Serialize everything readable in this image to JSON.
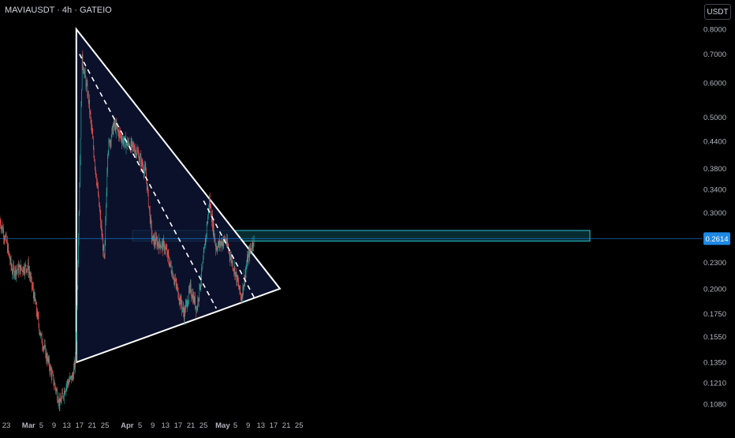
{
  "header": {
    "symbol_line": "MAVIAUSDT · 4h · GATEIO",
    "currency_button": "USDT"
  },
  "colors": {
    "background": "#000000",
    "up_candle": "#26a69a",
    "down_candle": "#ef5350",
    "triangle_fill": "#0d1433",
    "pattern_line": "#ffffff",
    "zone_fill": "#26c6da",
    "price_line": "#1e88e5",
    "axis_text": "#b2b5be"
  },
  "chart_data": {
    "type": "candlestick",
    "title": "",
    "y_scale": "log",
    "ylim": [
      0.098,
      0.86
    ],
    "price_axis_labels": [
      "0.8000",
      "0.7000",
      "0.6000",
      "0.5000",
      "0.4400",
      "0.3800",
      "0.3400",
      "0.3000",
      "0.2300",
      "0.2000",
      "0.1750",
      "0.1550",
      "0.1350",
      "0.1210",
      "0.1080"
    ],
    "time_axis_labels": [
      "23",
      "Mar",
      "5",
      "9",
      "13",
      "17",
      "21",
      "25",
      "Apr",
      "5",
      "9",
      "13",
      "17",
      "21",
      "25",
      "May",
      "5",
      "9",
      "13",
      "17",
      "21",
      "25"
    ],
    "current_price": "0.2614",
    "price_path_key_points": [
      [
        "Feb 21",
        0.29
      ],
      [
        "Feb 23",
        0.26
      ],
      [
        "Feb 25",
        0.22
      ],
      [
        "Mar 1",
        0.225
      ],
      [
        "Mar 3",
        0.19
      ],
      [
        "Mar 5",
        0.155
      ],
      [
        "Mar 8",
        0.13
      ],
      [
        "Mar 11",
        0.108
      ],
      [
        "Mar 13",
        0.12
      ],
      [
        "Mar 15",
        0.125
      ],
      [
        "Mar 16",
        0.138
      ],
      [
        "Mar 18",
        0.68
      ],
      [
        "Mar 20",
        0.55
      ],
      [
        "Mar 23",
        0.33
      ],
      [
        "Mar 25",
        0.23
      ],
      [
        "Mar 26",
        0.42
      ],
      [
        "Mar 28",
        0.48
      ],
      [
        "Mar 31",
        0.44
      ],
      [
        "Apr 4",
        0.42
      ],
      [
        "Apr 7",
        0.37
      ],
      [
        "Apr 9",
        0.26
      ],
      [
        "Apr 13",
        0.25
      ],
      [
        "Apr 16",
        0.21
      ],
      [
        "Apr 19",
        0.175
      ],
      [
        "Apr 21",
        0.2
      ],
      [
        "Apr 23",
        0.18
      ],
      [
        "Apr 25",
        0.23
      ],
      [
        "Apr 27",
        0.32
      ],
      [
        "Apr 29",
        0.25
      ],
      [
        "May 2",
        0.26
      ],
      [
        "May 5",
        0.22
      ],
      [
        "May 7",
        0.19
      ],
      [
        "May 9",
        0.235
      ],
      [
        "May 11",
        0.2614
      ]
    ],
    "annotations": {
      "triangle": [
        [
          "Mar 16",
          0.8
        ],
        [
          "Mar 16",
          0.135
        ],
        [
          "May 19",
          0.2
        ]
      ],
      "dashed_lines": [
        [
          [
            "Mar 17",
            0.7
          ],
          [
            "Apr 29",
            0.18
          ]
        ],
        [
          [
            "Apr 25",
            0.32
          ],
          [
            "May 11",
            0.19
          ]
        ]
      ],
      "horizontal_zone": [
        0.258,
        0.273
      ]
    },
    "grid": false
  }
}
